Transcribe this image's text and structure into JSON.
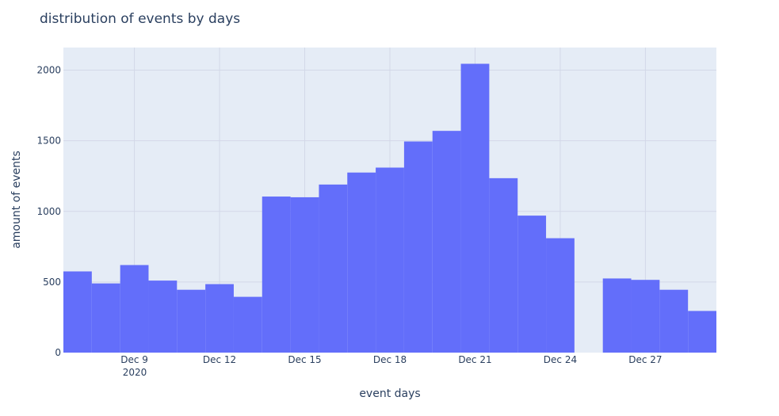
{
  "chart_data": {
    "type": "bar",
    "title": "distribution of events by days",
    "xlabel": "event days",
    "ylabel": "amount of events",
    "x_tick_labels": [
      "Dec 9",
      "Dec 12",
      "Dec 15",
      "Dec 18",
      "Dec 21",
      "Dec 24",
      "Dec 27"
    ],
    "x_tick_sublabel": "2020",
    "x_range": [
      "2020-12-06",
      "2020-12-29"
    ],
    "y_ticks": [
      0,
      500,
      1000,
      1500,
      2000
    ],
    "ylim": [
      0,
      2160
    ],
    "grid": true,
    "plot_bgcolor": "#e5ecf6",
    "bar_color": "#636efa",
    "categories": [
      "2020-12-07",
      "2020-12-08",
      "2020-12-09",
      "2020-12-10",
      "2020-12-11",
      "2020-12-12",
      "2020-12-13",
      "2020-12-14",
      "2020-12-15",
      "2020-12-16",
      "2020-12-17",
      "2020-12-18",
      "2020-12-19",
      "2020-12-20",
      "2020-12-21",
      "2020-12-22",
      "2020-12-23",
      "2020-12-24",
      "2020-12-25",
      "2020-12-26",
      "2020-12-27",
      "2020-12-28",
      "2020-12-29"
    ],
    "values": [
      575,
      490,
      620,
      510,
      445,
      485,
      395,
      1105,
      1100,
      1190,
      1275,
      1310,
      1495,
      1570,
      2045,
      1235,
      970,
      810,
      0,
      525,
      515,
      445,
      295
    ]
  }
}
